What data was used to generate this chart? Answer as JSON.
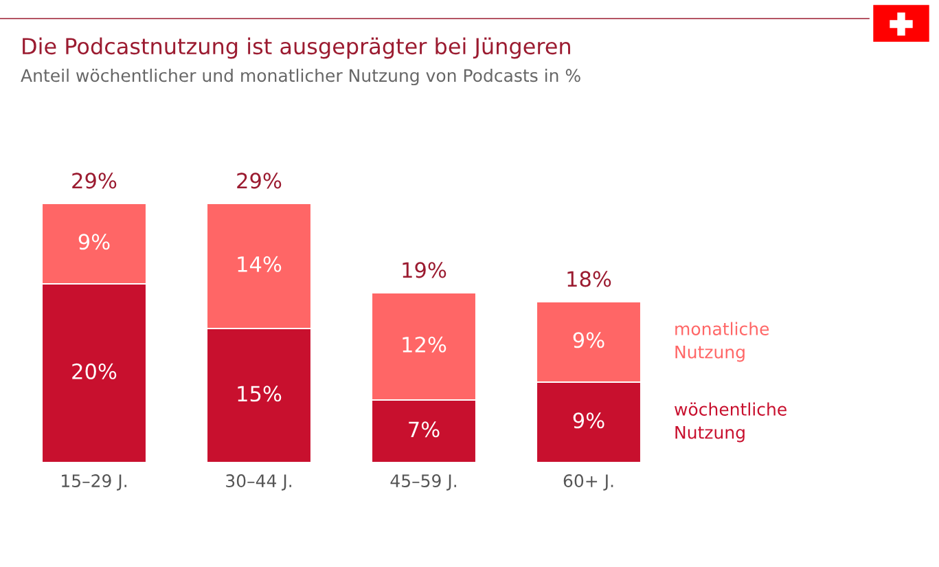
{
  "chart_data": {
    "type": "bar",
    "stacked": true,
    "title": "Die Podcastnutzung ist ausgeprägter bei Jüngeren",
    "subtitle": "Anteil wöchentlicher und monatlicher Nutzung von Podcasts in %",
    "categories": [
      "15–29 J.",
      "30–44 J.",
      "45–59 J.",
      "60+ J."
    ],
    "series": [
      {
        "name": "wöchentliche Nutzung",
        "color": "#c8102e",
        "values": [
          20,
          15,
          7,
          9
        ],
        "value_labels": [
          "20%",
          "15%",
          "7%",
          "9%"
        ]
      },
      {
        "name": "monatliche Nutzung",
        "color": "#ff6666",
        "values": [
          9,
          14,
          12,
          9
        ],
        "value_labels": [
          "9%",
          "14%",
          "12%",
          "9%"
        ]
      }
    ],
    "totals": [
      "29%",
      "29%",
      "19%",
      "18%"
    ],
    "data_labels": true
  }
}
